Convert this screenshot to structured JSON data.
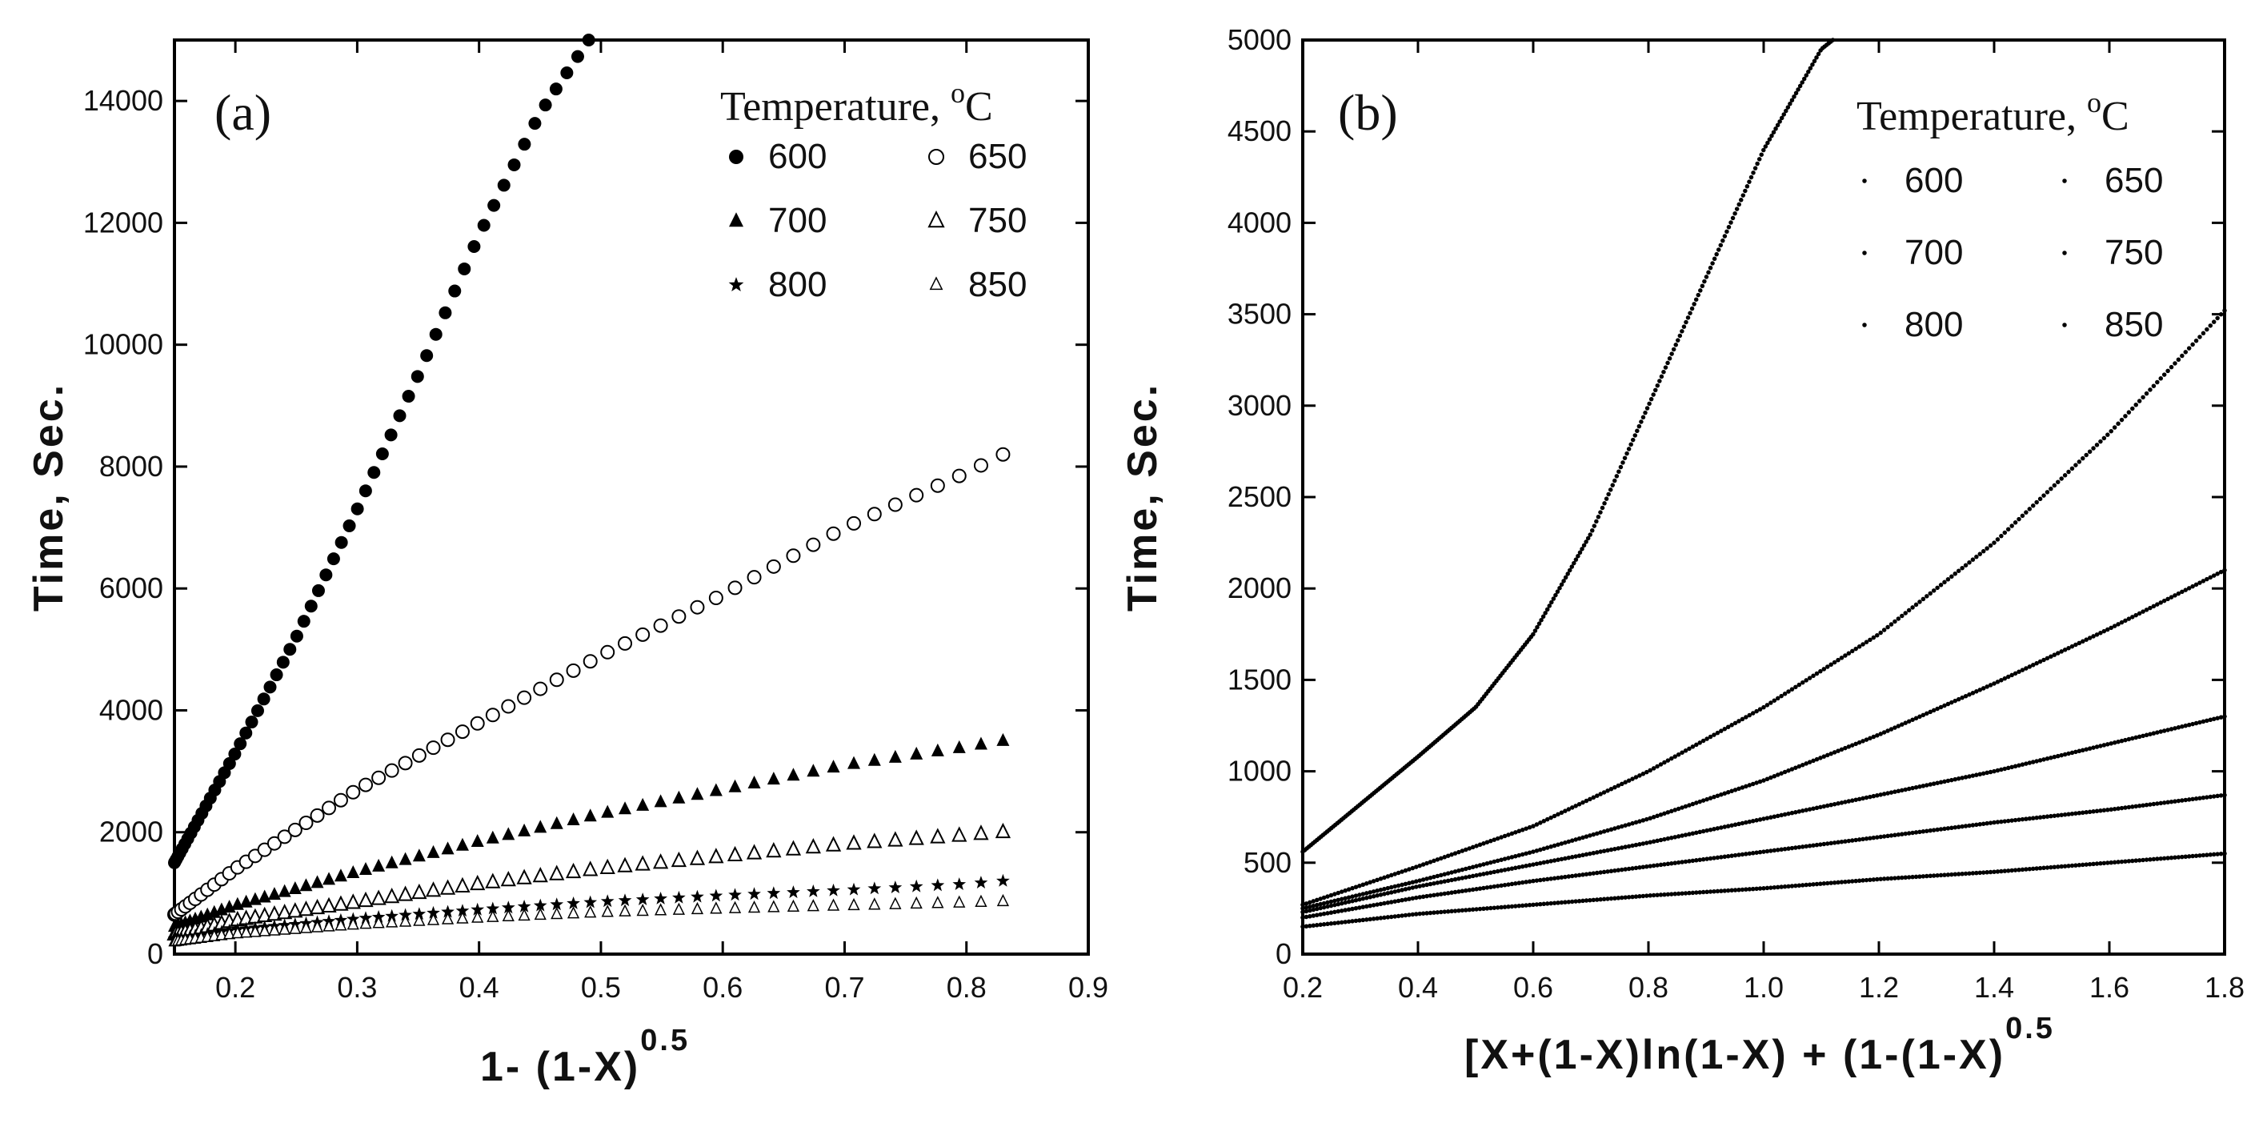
{
  "chart_data": [
    {
      "type": "scatter",
      "panel_label": "(a)",
      "xlabel": "1- (1-X)",
      "xlabel_sup": "0.5",
      "ylabel": "Time,  Sec.",
      "xlim": [
        0.15,
        0.9
      ],
      "ylim": [
        0,
        15000
      ],
      "xticks": [
        "0.2",
        "0.3",
        "0.4",
        "0.5",
        "0.6",
        "0.7",
        "0.8",
        "0.9"
      ],
      "yticks": [
        "0",
        "2000",
        "4000",
        "6000",
        "8000",
        "10000",
        "12000",
        "14000"
      ],
      "legend_title": "Temperature, ",
      "legend_unit_sup": "o",
      "legend_unit": "C",
      "legend_placement": "top-right",
      "series": [
        {
          "name": "600",
          "marker": "filled-circle",
          "x": [
            0.15,
            0.2,
            0.25,
            0.3,
            0.35,
            0.4,
            0.45,
            0.49
          ],
          "y": [
            1500,
            3300,
            5200,
            7300,
            9500,
            11800,
            13800,
            15000
          ]
        },
        {
          "name": "650",
          "marker": "open-circle",
          "x": [
            0.15,
            0.2,
            0.3,
            0.4,
            0.5,
            0.6,
            0.7,
            0.8,
            0.83
          ],
          "y": [
            650,
            1400,
            2700,
            3800,
            4900,
            5900,
            7000,
            7900,
            8200
          ]
        },
        {
          "name": "700",
          "marker": "filled-triangle",
          "x": [
            0.15,
            0.2,
            0.3,
            0.4,
            0.5,
            0.6,
            0.7,
            0.8,
            0.83
          ],
          "y": [
            450,
            800,
            1350,
            1850,
            2300,
            2700,
            3100,
            3400,
            3500
          ]
        },
        {
          "name": "750",
          "marker": "open-triangle",
          "x": [
            0.15,
            0.2,
            0.3,
            0.4,
            0.5,
            0.6,
            0.7,
            0.8,
            0.83
          ],
          "y": [
            320,
            550,
            850,
            1150,
            1400,
            1600,
            1800,
            1950,
            2000
          ]
        },
        {
          "name": "800",
          "marker": "star",
          "x": [
            0.15,
            0.2,
            0.3,
            0.4,
            0.5,
            0.6,
            0.7,
            0.8,
            0.83
          ],
          "y": [
            250,
            400,
            580,
            730,
            860,
            960,
            1050,
            1150,
            1200
          ]
        },
        {
          "name": "850",
          "marker": "small-triangle",
          "x": [
            0.15,
            0.2,
            0.3,
            0.4,
            0.5,
            0.6,
            0.7,
            0.8,
            0.83
          ],
          "y": [
            200,
            330,
            480,
            590,
            680,
            740,
            790,
            840,
            860
          ]
        }
      ]
    },
    {
      "type": "scatter",
      "panel_label": "(b)",
      "xlabel": "[X+(1-X)ln(1-X) + (1-(1-X)",
      "xlabel_sup": "0.5",
      "ylabel": "Time,  Sec.",
      "xlim": [
        0.2,
        1.8
      ],
      "ylim": [
        0,
        5000
      ],
      "xticks": [
        "0.2",
        "0.4",
        "0.6",
        "0.8",
        "1.0",
        "1.2",
        "1.4",
        "1.6",
        "1.8"
      ],
      "yticks": [
        "0",
        "500",
        "1000",
        "1500",
        "2000",
        "2500",
        "3000",
        "3500",
        "4000",
        "4500",
        "5000"
      ],
      "legend_title": "Temperature, ",
      "legend_unit_sup": "o",
      "legend_unit": "C",
      "legend_placement": "top-right",
      "series": [
        {
          "name": "600",
          "marker": "dot",
          "x": [
            0.2,
            0.3,
            0.4,
            0.5,
            0.6,
            0.7,
            0.8,
            0.9,
            1.0,
            1.1,
            1.12
          ],
          "y": [
            560,
            820,
            1080,
            1350,
            1750,
            2300,
            3000,
            3700,
            4400,
            4950,
            5000
          ]
        },
        {
          "name": "650",
          "marker": "dot",
          "x": [
            0.2,
            0.4,
            0.6,
            0.8,
            1.0,
            1.2,
            1.4,
            1.6,
            1.8
          ],
          "y": [
            270,
            480,
            700,
            1000,
            1350,
            1750,
            2250,
            2850,
            3520
          ]
        },
        {
          "name": "700",
          "marker": "dot",
          "x": [
            0.2,
            0.4,
            0.6,
            0.8,
            1.0,
            1.2,
            1.4,
            1.6,
            1.8
          ],
          "y": [
            250,
            400,
            560,
            740,
            950,
            1200,
            1480,
            1780,
            2100
          ]
        },
        {
          "name": "750",
          "marker": "dot",
          "x": [
            0.2,
            0.4,
            0.6,
            0.8,
            1.0,
            1.2,
            1.4,
            1.6,
            1.8
          ],
          "y": [
            230,
            370,
            490,
            610,
            740,
            870,
            1000,
            1150,
            1300
          ]
        },
        {
          "name": "800",
          "marker": "dot",
          "x": [
            0.2,
            0.4,
            0.6,
            0.8,
            1.0,
            1.2,
            1.4,
            1.6,
            1.8
          ],
          "y": [
            200,
            310,
            400,
            480,
            560,
            640,
            720,
            790,
            870
          ]
        },
        {
          "name": "850",
          "marker": "dot",
          "x": [
            0.2,
            0.4,
            0.6,
            0.8,
            1.0,
            1.2,
            1.4,
            1.6,
            1.8
          ],
          "y": [
            150,
            220,
            270,
            320,
            360,
            410,
            450,
            500,
            550
          ]
        }
      ]
    }
  ]
}
